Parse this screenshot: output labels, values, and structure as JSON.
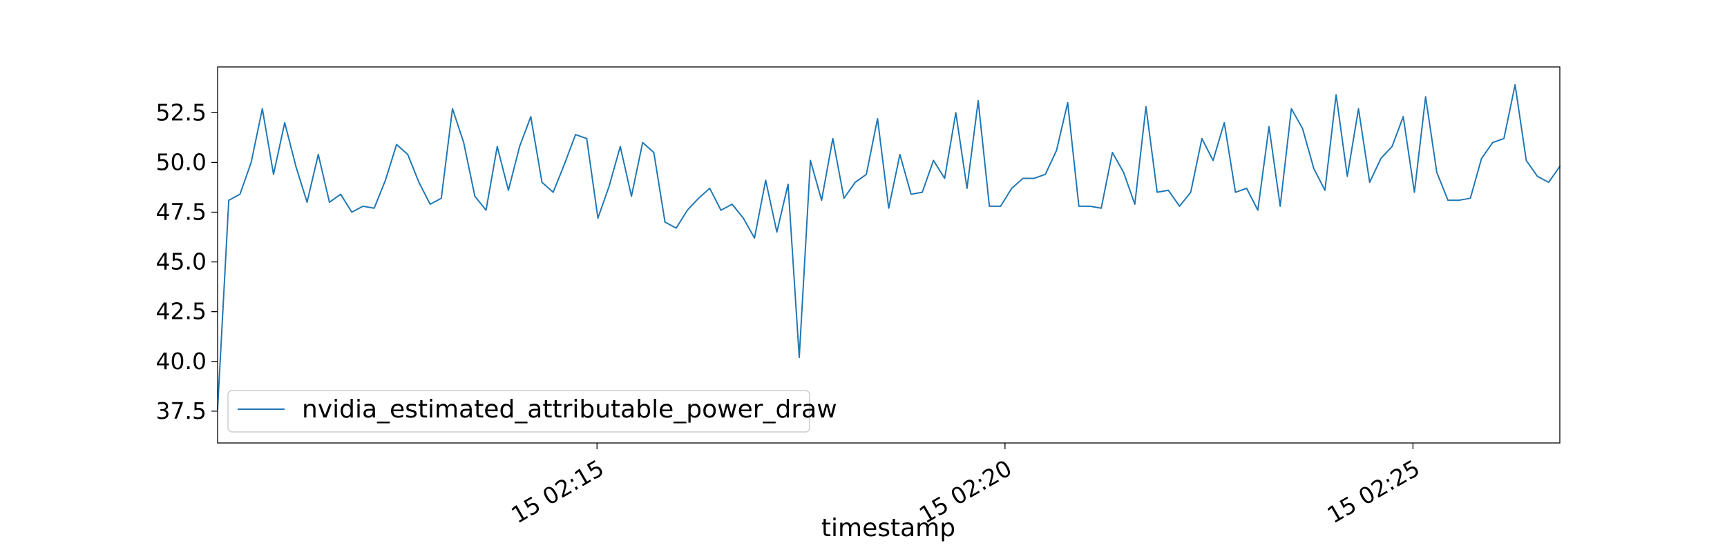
{
  "chart_data": {
    "type": "line",
    "title": "",
    "xlabel": "timestamp",
    "ylabel": "",
    "x_type": "time",
    "x_start": "02:10:21",
    "x_end": "02:26:48",
    "xlim": [
      "02:10:21",
      "02:26:48"
    ],
    "ylim": [
      35.9,
      54.8
    ],
    "x_ticks": [
      {
        "time": "02:15:00",
        "label": "15 02:15"
      },
      {
        "time": "02:20:00",
        "label": "15 02:20"
      },
      {
        "time": "02:25:00",
        "label": "15 02:25"
      }
    ],
    "y_ticks": [
      37.5,
      40.0,
      42.5,
      45.0,
      47.5,
      50.0,
      52.5
    ],
    "y_tick_labels": [
      "37.5",
      "40.0",
      "42.5",
      "45.0",
      "47.5",
      "50.0",
      "52.5"
    ],
    "grid": false,
    "legend_position": "lower-left",
    "series": [
      {
        "name": "nvidia_estimated_attributable_power_draw",
        "color": "#1f77b4",
        "values": [
          37.6,
          48.1,
          48.4,
          50.0,
          52.7,
          49.4,
          52.0,
          49.8,
          48.0,
          50.4,
          48.0,
          48.4,
          47.5,
          47.8,
          47.7,
          49.1,
          50.9,
          50.4,
          49.0,
          47.9,
          48.2,
          52.7,
          51.0,
          48.3,
          47.6,
          50.8,
          48.6,
          50.8,
          52.3,
          49.0,
          48.5,
          49.9,
          51.4,
          51.2,
          47.2,
          48.8,
          50.8,
          48.3,
          51.0,
          50.5,
          47.0,
          46.7,
          47.6,
          48.2,
          48.7,
          47.6,
          47.9,
          47.2,
          46.2,
          49.1,
          46.5,
          48.9,
          40.2,
          50.1,
          48.1,
          51.2,
          48.2,
          49.0,
          49.4,
          52.2,
          47.7,
          50.4,
          48.4,
          48.5,
          50.1,
          49.2,
          52.5,
          48.7,
          53.1,
          47.8,
          47.8,
          48.7,
          49.2,
          49.2,
          49.4,
          50.6,
          53.0,
          47.8,
          47.8,
          47.7,
          50.5,
          49.5,
          47.9,
          52.8,
          48.5,
          48.6,
          47.8,
          48.5,
          51.2,
          50.1,
          52.0,
          48.5,
          48.7,
          47.6,
          51.8,
          47.8,
          52.7,
          51.7,
          49.7,
          48.6,
          53.4,
          49.3,
          52.7,
          49.0,
          50.2,
          50.8,
          52.3,
          48.5,
          53.3,
          49.5,
          48.1,
          48.1,
          48.2,
          50.2,
          51.0,
          51.2,
          53.9,
          50.1,
          49.3,
          49.0,
          49.8
        ]
      }
    ]
  }
}
